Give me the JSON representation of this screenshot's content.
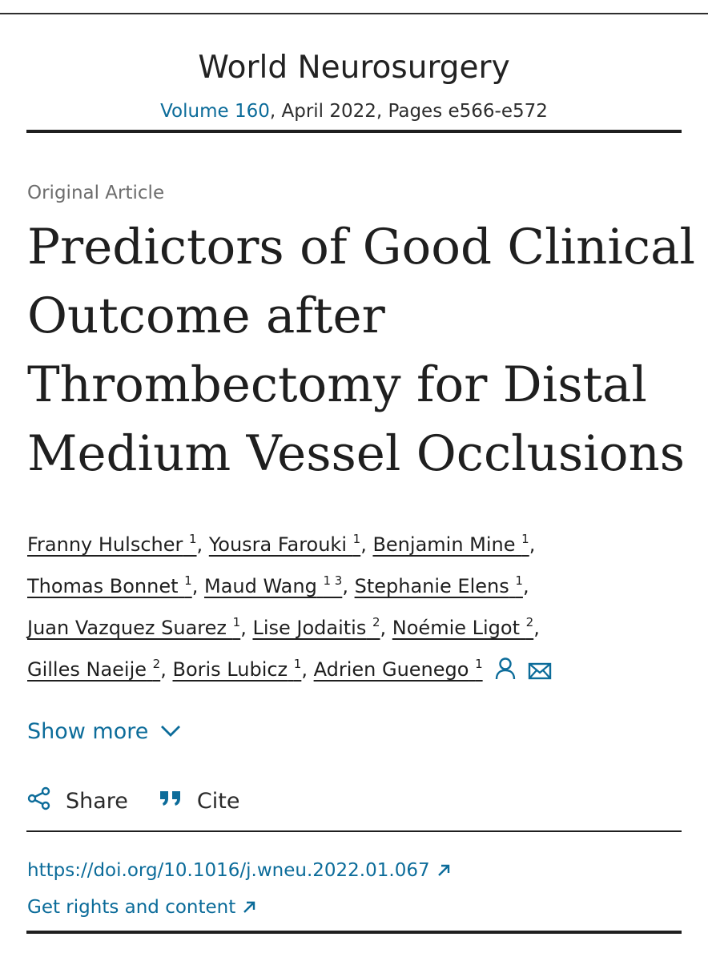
{
  "header": {
    "journal": "World Neurosurgery",
    "volume": "Volume 160",
    "issue_rest": ", April 2022, Pages e566-e572"
  },
  "article": {
    "type": "Original Article",
    "title_lines": [
      "Predictors of Good Clinical",
      "Outcome after",
      "Thrombectomy for Distal",
      "Medium Vessel Occlusions"
    ]
  },
  "authors": [
    {
      "name": "Franny Hulscher",
      "aff": "1"
    },
    {
      "name": "Yousra Farouki",
      "aff": "1"
    },
    {
      "name": "Benjamin Mine",
      "aff": "1"
    },
    {
      "name": "Thomas Bonnet",
      "aff": "1"
    },
    {
      "name": "Maud Wang",
      "aff": "1 3"
    },
    {
      "name": "Stephanie Elens",
      "aff": "1"
    },
    {
      "name": "Juan Vazquez Suarez",
      "aff": "1"
    },
    {
      "name": "Lise Jodaitis",
      "aff": "2"
    },
    {
      "name": "Noémie Ligot",
      "aff": "2"
    },
    {
      "name": "Gilles Naeije",
      "aff": "2"
    },
    {
      "name": "Boris Lubicz",
      "aff": "1"
    },
    {
      "name": "Adrien Guenego",
      "aff": "1"
    }
  ],
  "icons": {
    "person": "person-icon",
    "mail": "mail-icon",
    "chevron": "chevron-down-icon",
    "share": "share-icon",
    "cite": "quote-icon",
    "external": "external-link-icon"
  },
  "controls": {
    "show_more": "Show more",
    "share": "Share",
    "cite": "Cite"
  },
  "links": {
    "doi": "https://doi.org/10.1016/j.wneu.2022.01.067",
    "rights": "Get rights and content"
  },
  "colors": {
    "link": "#0c6c9a",
    "text": "#1f1f1f",
    "muted": "#6d6d6d"
  }
}
